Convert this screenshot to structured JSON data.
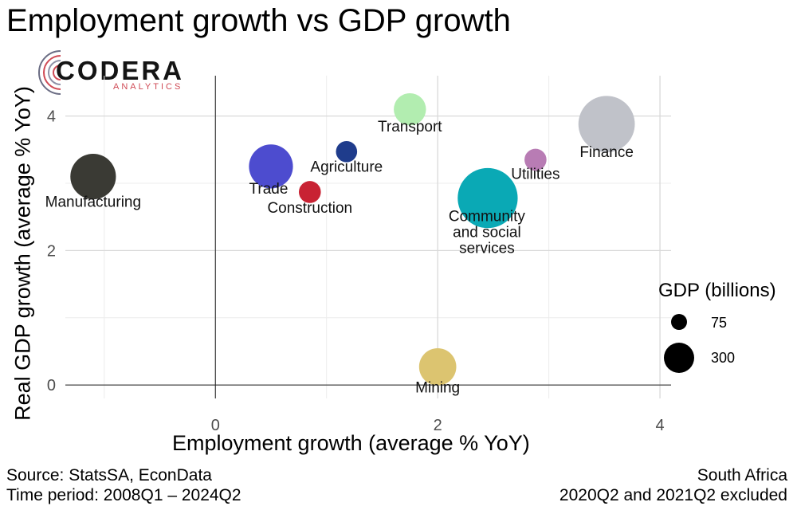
{
  "title": "Employment growth vs GDP growth",
  "chart_data": {
    "type": "scatter",
    "title": "Employment growth vs GDP growth",
    "xlabel": "Employment growth (average % YoY)",
    "ylabel": "Real GDP growth (average % YoY)",
    "xlim": [
      -1.35,
      4.1
    ],
    "ylim": [
      -0.2,
      4.6
    ],
    "x_ticks": [
      0,
      2,
      4
    ],
    "y_ticks": [
      0,
      2,
      4
    ],
    "grid": true,
    "size_legend": {
      "title": "GDP (billions)",
      "entries": [
        {
          "label": "75",
          "value": 75
        },
        {
          "label": "300",
          "value": 300
        }
      ]
    },
    "points": [
      {
        "name": "Manufacturing",
        "x": -1.1,
        "y": 3.1,
        "gdp": 300,
        "color": "#3a3a34"
      },
      {
        "name": "Trade",
        "x": 0.5,
        "y": 3.25,
        "gdp": 280,
        "color": "#4d4ccf"
      },
      {
        "name": "Construction",
        "x": 0.85,
        "y": 2.87,
        "gdp": 70,
        "color": "#c82233"
      },
      {
        "name": "Agriculture",
        "x": 1.18,
        "y": 3.47,
        "gdp": 65,
        "color": "#1f3c8c"
      },
      {
        "name": "Transport",
        "x": 1.75,
        "y": 4.1,
        "gdp": 150,
        "color": "#b2edb0"
      },
      {
        "name": "Mining",
        "x": 2.0,
        "y": 0.27,
        "gdp": 200,
        "color": "#dcc470"
      },
      {
        "name": "Community and social services",
        "x": 2.45,
        "y": 2.78,
        "gdp": 520,
        "color": "#0aa9b5"
      },
      {
        "name": "Utilities",
        "x": 2.88,
        "y": 3.35,
        "gdp": 70,
        "color": "#b87cb4"
      },
      {
        "name": "Finance",
        "x": 3.52,
        "y": 3.88,
        "gdp": 460,
        "color": "#c0c2c9"
      }
    ],
    "point_labels": {
      "Community and social services": [
        "Community",
        "and social",
        "services"
      ]
    }
  },
  "captions": {
    "source": "Source: StatsSA, EconData",
    "period": "Time period: 2008Q1 – 2024Q2",
    "region": "South Africa",
    "excluded": "2020Q2 and 2021Q2 excluded"
  },
  "logo": {
    "text": "CODERA",
    "sub": "ANALYTICS",
    "accent": "#cf4a55"
  }
}
